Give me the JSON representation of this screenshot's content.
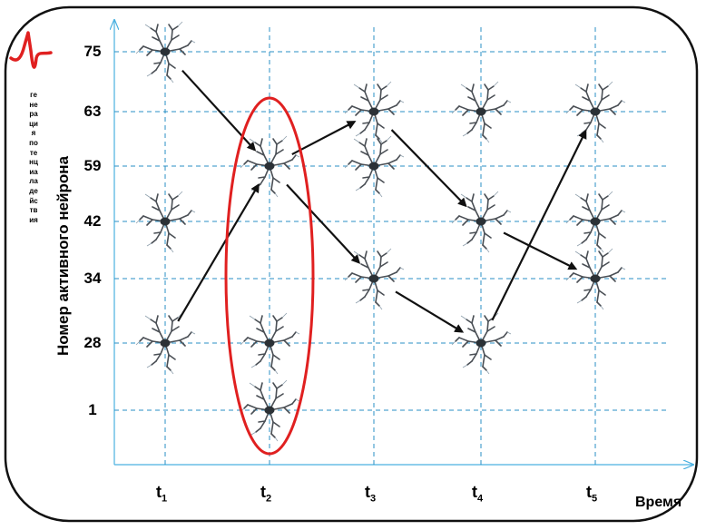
{
  "axis": {
    "y_label": "Номер активного нейрона",
    "x_label": "Время",
    "y_ticks": [
      "75",
      "63",
      "59",
      "42",
      "34",
      "28",
      "1"
    ],
    "x_ticks": [
      {
        "main": "t",
        "sub": "1"
      },
      {
        "main": "t",
        "sub": "2"
      },
      {
        "main": "t",
        "sub": "3"
      },
      {
        "main": "t",
        "sub": "4"
      },
      {
        "main": "t",
        "sub": "5"
      }
    ]
  },
  "side_caption": "генерация потенциала действия",
  "neurons": [
    {
      "t": 1,
      "n": "75"
    },
    {
      "t": 1,
      "n": "42"
    },
    {
      "t": 1,
      "n": "28"
    },
    {
      "t": 2,
      "n": "59"
    },
    {
      "t": 2,
      "n": "28"
    },
    {
      "t": 2,
      "n": "1"
    },
    {
      "t": 3,
      "n": "63"
    },
    {
      "t": 3,
      "n": "59"
    },
    {
      "t": 3,
      "n": "34"
    },
    {
      "t": 4,
      "n": "63"
    },
    {
      "t": 4,
      "n": "42"
    },
    {
      "t": 4,
      "n": "28"
    },
    {
      "t": 5,
      "n": "63"
    },
    {
      "t": 5,
      "n": "42"
    },
    {
      "t": 5,
      "n": "34"
    }
  ],
  "arrows": [
    {
      "from": {
        "t": 1,
        "n": "75"
      },
      "to": {
        "t": 2,
        "n": "59"
      }
    },
    {
      "from": {
        "t": 1,
        "n": "28"
      },
      "to": {
        "t": 2,
        "n": "59"
      }
    },
    {
      "from": {
        "t": 2,
        "n": "59"
      },
      "to": {
        "t": 3,
        "n": "63"
      }
    },
    {
      "from": {
        "t": 2,
        "n": "59"
      },
      "to": {
        "t": 3,
        "n": "34"
      }
    },
    {
      "from": {
        "t": 3,
        "n": "63"
      },
      "to": {
        "t": 4,
        "n": "42"
      }
    },
    {
      "from": {
        "t": 3,
        "n": "34"
      },
      "to": {
        "t": 4,
        "n": "28"
      }
    },
    {
      "from": {
        "t": 4,
        "n": "42"
      },
      "to": {
        "t": 5,
        "n": "34"
      }
    },
    {
      "from": {
        "t": 4,
        "n": "28"
      },
      "to": {
        "t": 5,
        "n": "63"
      }
    }
  ],
  "highlight": {
    "t": 2
  },
  "colors": {
    "grid": "#2a8fc4",
    "axis": "#4ab0e0",
    "highlight": "#e02020",
    "arrow": "#111111",
    "frame": "#111111",
    "spike": "#e02020"
  }
}
